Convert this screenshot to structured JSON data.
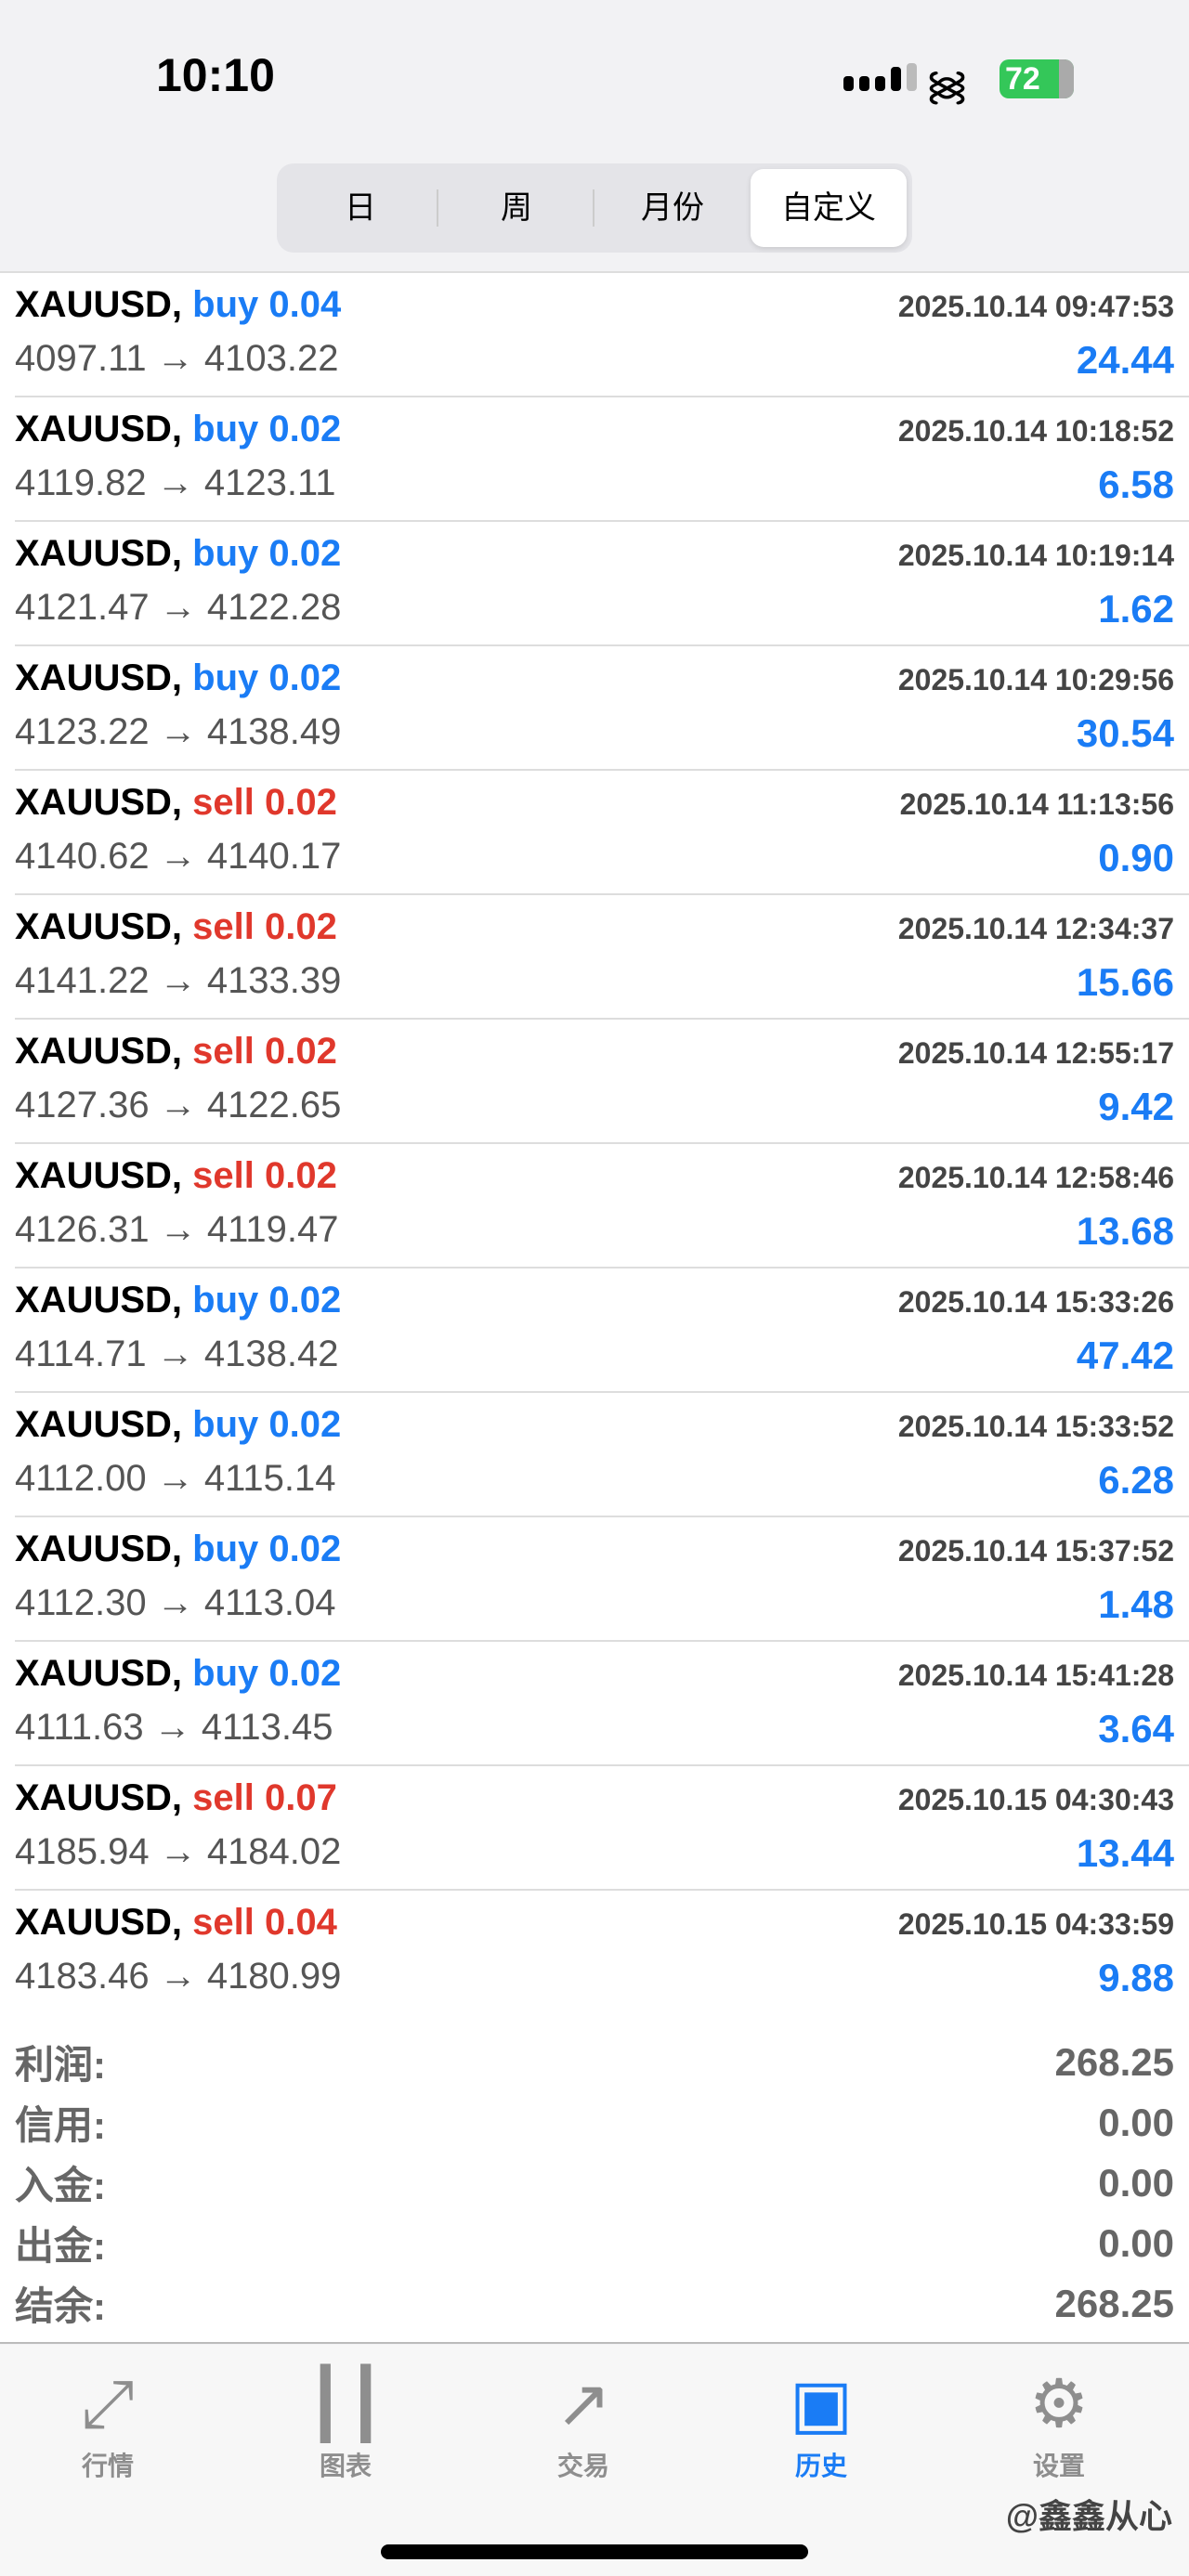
{
  "status": {
    "time": "10:10",
    "battery": "72"
  },
  "segments": [
    {
      "label": "日"
    },
    {
      "label": "周"
    },
    {
      "label": "月份"
    },
    {
      "label": "自定义",
      "active": true
    }
  ],
  "colors": {
    "buy": "#1a7cf5",
    "sell": "#e0382c",
    "profit": "#1a7cf5"
  },
  "deals": [
    {
      "symbol": "XAUUSD,",
      "type": "buy 0.04",
      "side": "buy",
      "time": "2025.10.14 09:47:53",
      "prices": "4097.11 → 4103.22",
      "profit": "24.44"
    },
    {
      "symbol": "XAUUSD,",
      "type": "buy 0.02",
      "side": "buy",
      "time": "2025.10.14 10:18:52",
      "prices": "4119.82 → 4123.11",
      "profit": "6.58"
    },
    {
      "symbol": "XAUUSD,",
      "type": "buy 0.02",
      "side": "buy",
      "time": "2025.10.14 10:19:14",
      "prices": "4121.47 → 4122.28",
      "profit": "1.62"
    },
    {
      "symbol": "XAUUSD,",
      "type": "buy 0.02",
      "side": "buy",
      "time": "2025.10.14 10:29:56",
      "prices": "4123.22 → 4138.49",
      "profit": "30.54"
    },
    {
      "symbol": "XAUUSD,",
      "type": "sell 0.02",
      "side": "sell",
      "time": "2025.10.14 11:13:56",
      "prices": "4140.62 → 4140.17",
      "profit": "0.90"
    },
    {
      "symbol": "XAUUSD,",
      "type": "sell 0.02",
      "side": "sell",
      "time": "2025.10.14 12:34:37",
      "prices": "4141.22 → 4133.39",
      "profit": "15.66"
    },
    {
      "symbol": "XAUUSD,",
      "type": "sell 0.02",
      "side": "sell",
      "time": "2025.10.14 12:55:17",
      "prices": "4127.36 → 4122.65",
      "profit": "9.42"
    },
    {
      "symbol": "XAUUSD,",
      "type": "sell 0.02",
      "side": "sell",
      "time": "2025.10.14 12:58:46",
      "prices": "4126.31 → 4119.47",
      "profit": "13.68"
    },
    {
      "symbol": "XAUUSD,",
      "type": "buy 0.02",
      "side": "buy",
      "time": "2025.10.14 15:33:26",
      "prices": "4114.71 → 4138.42",
      "profit": "47.42"
    },
    {
      "symbol": "XAUUSD,",
      "type": "buy 0.02",
      "side": "buy",
      "time": "2025.10.14 15:33:52",
      "prices": "4112.00 → 4115.14",
      "profit": "6.28"
    },
    {
      "symbol": "XAUUSD,",
      "type": "buy 0.02",
      "side": "buy",
      "time": "2025.10.14 15:37:52",
      "prices": "4112.30 → 4113.04",
      "profit": "1.48"
    },
    {
      "symbol": "XAUUSD,",
      "type": "buy 0.02",
      "side": "buy",
      "time": "2025.10.14 15:41:28",
      "prices": "4111.63 → 4113.45",
      "profit": "3.64"
    },
    {
      "symbol": "XAUUSD,",
      "type": "sell 0.07",
      "side": "sell",
      "time": "2025.10.15 04:30:43",
      "prices": "4185.94 → 4184.02",
      "profit": "13.44"
    },
    {
      "symbol": "XAUUSD,",
      "type": "sell 0.04",
      "side": "sell",
      "time": "2025.10.15 04:33:59",
      "prices": "4183.46 → 4180.99",
      "profit": "9.88"
    }
  ],
  "summary": [
    {
      "label": "利润:",
      "value": "268.25"
    },
    {
      "label": "信用:",
      "value": "0.00"
    },
    {
      "label": "入金:",
      "value": "0.00"
    },
    {
      "label": "出金:",
      "value": "0.00"
    },
    {
      "label": "结余:",
      "value": "268.25"
    }
  ],
  "tabs": [
    {
      "label": "行情",
      "icon": "quotes-arrows-icon",
      "glyph": "⤢"
    },
    {
      "label": "图表",
      "icon": "candlestick-chart-icon",
      "glyph": "┃┃"
    },
    {
      "label": "交易",
      "icon": "trade-trend-icon",
      "glyph": "↗"
    },
    {
      "label": "历史",
      "icon": "history-inbox-icon",
      "glyph": "▣",
      "active": true
    },
    {
      "label": "设置",
      "icon": "gear-icon",
      "glyph": "⚙"
    }
  ],
  "watermark": "@鑫鑫从心"
}
